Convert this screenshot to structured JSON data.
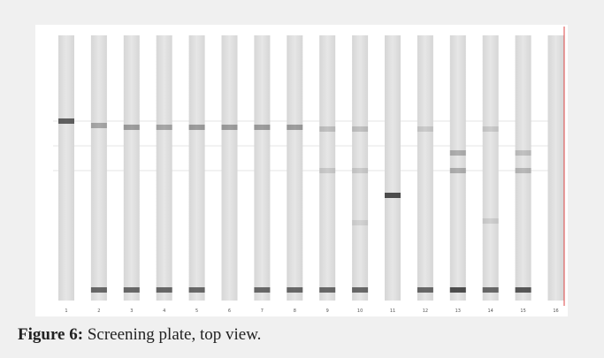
{
  "figure": {
    "lanes": [
      "1",
      "2",
      "3",
      "4",
      "5",
      "6",
      "7",
      "8",
      "9",
      "10",
      "11",
      "12",
      "13",
      "14",
      "15",
      "16"
    ],
    "caption_label": "Figure 6:",
    "caption_text": "Screening plate, top view."
  }
}
